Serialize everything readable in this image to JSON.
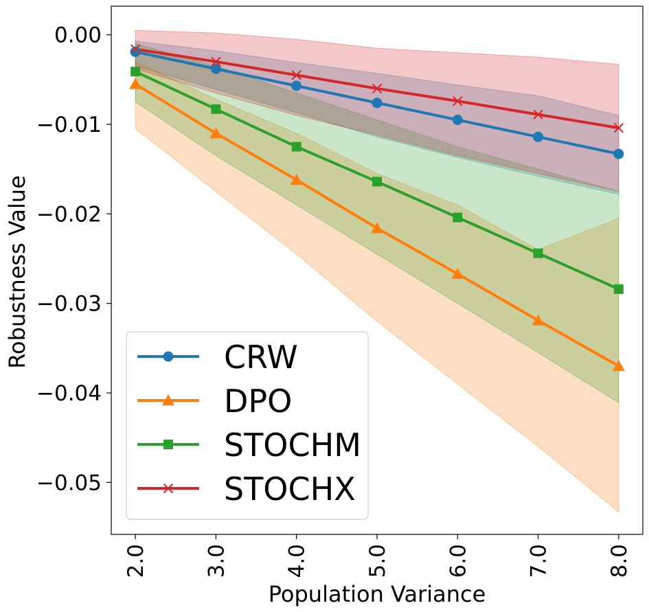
{
  "chart_data": {
    "type": "line",
    "title": "",
    "xlabel": "Population Variance",
    "ylabel": "Robustness Value",
    "x": [
      2.0,
      3.0,
      4.0,
      5.0,
      6.0,
      7.0,
      8.0
    ],
    "x_tick_labels": [
      "2.0",
      "3.0",
      "4.0",
      "5.0",
      "6.0",
      "7.0",
      "8.0"
    ],
    "xlim": [
      1.7,
      8.3
    ],
    "y_ticks": [
      0.0,
      -0.01,
      -0.02,
      -0.03,
      -0.04,
      -0.05
    ],
    "y_tick_labels": [
      "0.00",
      "−0.01",
      "−0.02",
      "−0.03",
      "−0.04",
      "−0.05"
    ],
    "ylim": [
      -0.0558,
      0.0032
    ],
    "grid": false,
    "legend_position": "lower-left",
    "series": [
      {
        "name": "CRW",
        "color": "#1f77b4",
        "marker": "circle",
        "values": [
          -0.0019,
          -0.0038,
          -0.0057,
          -0.0076,
          -0.0095,
          -0.0114,
          -0.0133
        ],
        "lower": [
          -0.0035,
          -0.0061,
          -0.0087,
          -0.0114,
          -0.0137,
          -0.0158,
          -0.0178
        ],
        "upper": [
          -0.0007,
          -0.0018,
          -0.0031,
          -0.0043,
          -0.0056,
          -0.0068,
          -0.009
        ]
      },
      {
        "name": "DPO",
        "color": "#ff7f0e",
        "marker": "triangle",
        "values": [
          -0.0055,
          -0.011,
          -0.0162,
          -0.0216,
          -0.0267,
          -0.0319,
          -0.037
        ],
        "lower": [
          -0.0105,
          -0.0175,
          -0.0245,
          -0.032,
          -0.039,
          -0.046,
          -0.0533
        ],
        "upper": [
          -0.003,
          -0.0072,
          -0.011,
          -0.0155,
          -0.019,
          -0.024,
          -0.0205
        ]
      },
      {
        "name": "STOCHM",
        "color": "#2ca02c",
        "marker": "square",
        "values": [
          -0.0041,
          -0.0083,
          -0.0125,
          -0.0164,
          -0.0204,
          -0.0244,
          -0.0284
        ],
        "lower": [
          -0.0075,
          -0.0135,
          -0.019,
          -0.0245,
          -0.03,
          -0.0355,
          -0.0411
        ],
        "upper": [
          -0.001,
          -0.0035,
          -0.0065,
          -0.0095,
          -0.0125,
          -0.015,
          -0.0175
        ]
      },
      {
        "name": "STOCHX",
        "color": "#d62728",
        "marker": "x",
        "values": [
          -0.0016,
          -0.003,
          -0.0045,
          -0.006,
          -0.0074,
          -0.0089,
          -0.0104
        ],
        "lower": [
          -0.0038,
          -0.0065,
          -0.009,
          -0.0112,
          -0.0135,
          -0.0155,
          -0.0175
        ],
        "upper": [
          0.0005,
          0.0002,
          -0.0005,
          -0.0015,
          -0.002,
          -0.0025,
          -0.0033
        ]
      }
    ]
  }
}
